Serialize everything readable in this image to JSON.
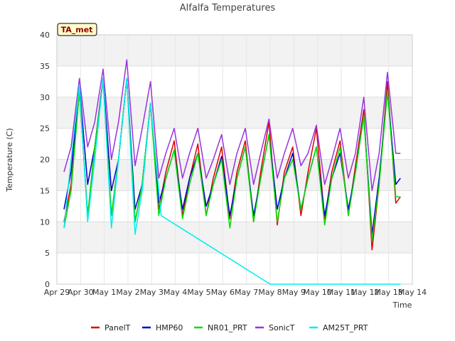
{
  "chart_data": {
    "type": "line",
    "title": "Alfalfa Temperatures",
    "xlabel": "Time",
    "ylabel": "Temperature (C)",
    "badge": "TA_met",
    "ylim": [
      0,
      40
    ],
    "yticks": [
      0,
      5,
      10,
      15,
      20,
      25,
      30,
      35,
      40
    ],
    "xlim": [
      0,
      15
    ],
    "xticks": [
      {
        "value": 0,
        "label": "Apr 29"
      },
      {
        "value": 1,
        "label": "Apr 30"
      },
      {
        "value": 2,
        "label": "May 1"
      },
      {
        "value": 3,
        "label": "May 2"
      },
      {
        "value": 4,
        "label": "May 3"
      },
      {
        "value": 5,
        "label": "May 4"
      },
      {
        "value": 6,
        "label": "May 5"
      },
      {
        "value": 7,
        "label": "May 6"
      },
      {
        "value": 8,
        "label": "May 7"
      },
      {
        "value": 9,
        "label": "May 8"
      },
      {
        "value": 10,
        "label": "May 9"
      },
      {
        "value": 11,
        "label": "May 10"
      },
      {
        "value": 12,
        "label": "May 11"
      },
      {
        "value": 13,
        "label": "May 12"
      },
      {
        "value": 14,
        "label": "May 13"
      },
      {
        "value": 15,
        "label": "May 14"
      }
    ],
    "grid": true,
    "legend_position": "bottom",
    "series": [
      {
        "name": "PanelT",
        "color": "#dd0000",
        "x": [
          0.3,
          0.6,
          0.95,
          1.3,
          1.6,
          1.95,
          2.3,
          2.6,
          2.95,
          3.3,
          3.6,
          3.95,
          4.3,
          4.6,
          4.95,
          5.3,
          5.6,
          5.95,
          6.3,
          6.6,
          6.95,
          7.3,
          7.6,
          7.95,
          8.3,
          8.6,
          8.95,
          9.3,
          9.6,
          9.95,
          10.3,
          10.6,
          10.95,
          11.3,
          11.6,
          11.95,
          12.3,
          12.6,
          12.95,
          13.3,
          13.6,
          13.95,
          14.3,
          14.5
        ],
        "y": [
          10,
          16,
          31,
          11,
          22,
          33,
          11,
          20,
          33,
          10,
          16,
          29,
          12,
          18,
          23,
          11,
          17,
          22.5,
          11,
          17,
          22,
          10.5,
          18,
          23,
          10,
          18,
          26,
          9.5,
          18,
          22,
          11,
          18,
          25,
          10.5,
          18,
          23,
          11,
          19,
          28,
          5.5,
          16,
          32.5,
          13,
          14
        ]
      },
      {
        "name": "HMP60",
        "color": "#0000cc",
        "x": [
          0.3,
          0.6,
          0.95,
          1.3,
          1.6,
          1.95,
          2.3,
          2.6,
          2.95,
          3.3,
          3.6,
          3.95,
          4.3,
          4.6,
          4.95,
          5.3,
          5.6,
          5.95,
          6.3,
          6.6,
          6.95,
          7.3,
          7.6,
          7.95,
          8.3,
          8.6,
          8.95,
          9.3,
          9.6,
          9.95,
          10.3,
          10.6,
          10.95,
          11.3,
          11.6,
          11.95,
          12.3,
          12.6,
          12.95,
          13.3,
          13.6,
          13.95,
          14.3,
          14.5
        ],
        "y": [
          12,
          18,
          32,
          16,
          22,
          33,
          15,
          20,
          33,
          12,
          16,
          29,
          13,
          17,
          21.5,
          12,
          17,
          21,
          12.5,
          16,
          20.5,
          11,
          17,
          22,
          11,
          17,
          24,
          12,
          17,
          21,
          12,
          17,
          22,
          11,
          17,
          21,
          12,
          18,
          27,
          8,
          17,
          31,
          16,
          17
        ]
      },
      {
        "name": "NR01_PRT",
        "color": "#00dd00",
        "x": [
          0.3,
          0.6,
          0.95,
          1.3,
          1.6,
          1.95,
          2.3,
          2.6,
          2.95,
          3.3,
          3.6,
          3.95,
          4.3,
          4.6,
          4.95,
          5.3,
          5.6,
          5.95,
          6.3,
          6.6,
          6.95,
          7.3,
          7.6,
          7.95,
          8.3,
          8.6,
          8.95,
          9.3,
          9.6,
          9.95,
          10.3,
          10.6,
          10.95,
          11.3,
          11.6,
          11.95,
          12.3,
          12.6,
          12.95,
          13.3,
          13.6,
          13.95,
          14.3,
          14.5
        ],
        "y": [
          9,
          15,
          31,
          11,
          22,
          32.5,
          11,
          20,
          33,
          10,
          16,
          29,
          11,
          17,
          21.5,
          10.5,
          16,
          21,
          11,
          16,
          20,
          9,
          17,
          22,
          10,
          17,
          24,
          10,
          17,
          20,
          12,
          17,
          22,
          9.5,
          17,
          22,
          11,
          18,
          27,
          7,
          16,
          31,
          14,
          14
        ]
      },
      {
        "name": "SonicT",
        "color": "#9933dd",
        "x": [
          0.3,
          0.6,
          0.95,
          1.3,
          1.6,
          1.95,
          2.3,
          2.6,
          2.95,
          3.3,
          3.6,
          3.95,
          4.3,
          4.6,
          4.95,
          5.3,
          5.6,
          5.95,
          6.3,
          6.6,
          6.95,
          7.3,
          7.6,
          7.95,
          8.3,
          8.6,
          8.95,
          9.3,
          9.6,
          9.95,
          10.3,
          10.6,
          10.95,
          11.3,
          11.6,
          11.95,
          12.3,
          12.6,
          12.95,
          13.3,
          13.6,
          13.95,
          14.3,
          14.5
        ],
        "y": [
          18,
          22,
          33,
          22,
          26,
          34.5,
          20,
          26,
          36,
          19,
          25,
          32.5,
          17,
          21,
          25,
          17,
          21,
          25,
          17,
          20,
          24,
          16,
          21,
          25,
          16,
          21,
          26.5,
          17,
          21,
          25,
          19,
          21,
          25.5,
          16,
          20,
          25,
          17,
          21,
          30,
          15,
          21,
          34,
          21,
          21
        ]
      },
      {
        "name": "AM25T_PRT",
        "color": "#00eeee",
        "x": [
          0.3,
          0.6,
          0.95,
          1.3,
          1.6,
          1.95,
          2.3,
          2.6,
          2.95,
          3.3,
          3.6,
          3.95,
          4.3,
          4.4,
          9.0,
          14.5
        ],
        "y": [
          9,
          20,
          32,
          10,
          20,
          33,
          9,
          20,
          33,
          8,
          15,
          29,
          15,
          11,
          0,
          0
        ]
      }
    ]
  }
}
